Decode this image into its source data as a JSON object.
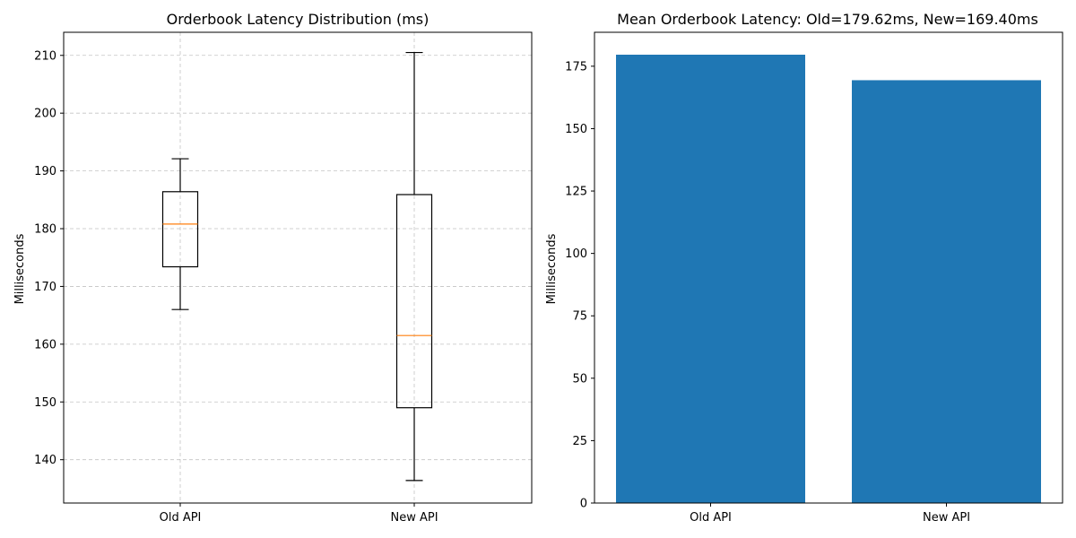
{
  "chart_data": [
    {
      "type": "boxplot",
      "title": "Orderbook Latency Distribution (ms)",
      "xlabel": "",
      "ylabel": "Milliseconds",
      "categories": [
        "Old API",
        "New API"
      ],
      "boxes": [
        {
          "whisker_low": 166.0,
          "q1": 173.4,
          "median": 180.8,
          "q3": 186.4,
          "whisker_high": 192.1
        },
        {
          "whisker_low": 136.4,
          "q1": 149.0,
          "median": 161.5,
          "q3": 185.9,
          "whisker_high": 210.5
        }
      ],
      "ylim": [
        132.5,
        214.0
      ],
      "yticks": [
        140,
        150,
        160,
        170,
        180,
        190,
        200,
        210
      ],
      "grid": true,
      "colors": {
        "box": "#000000",
        "median": "#ff7f0e",
        "grid": "#b0b0b0"
      }
    },
    {
      "type": "bar",
      "title": "Mean Orderbook Latency: Old=179.62ms, New=169.40ms",
      "xlabel": "",
      "ylabel": "Milliseconds",
      "categories": [
        "Old API",
        "New API"
      ],
      "values": [
        179.62,
        169.4
      ],
      "ylim": [
        0,
        188.6
      ],
      "yticks": [
        0,
        25,
        50,
        75,
        100,
        125,
        150,
        175
      ],
      "grid": false,
      "colors": {
        "bar": "#1f77b4"
      }
    }
  ]
}
